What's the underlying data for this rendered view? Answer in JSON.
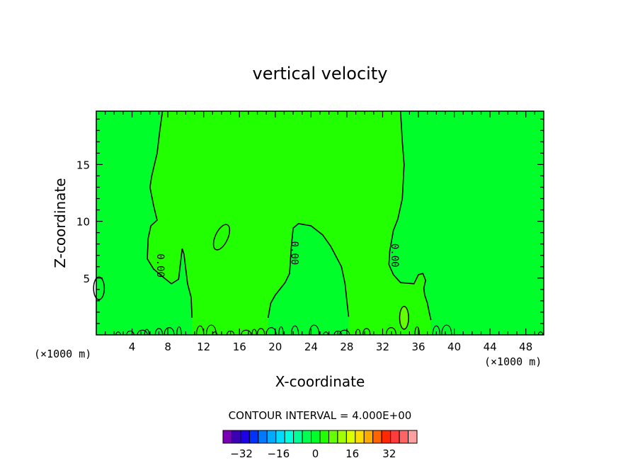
{
  "chart_data": {
    "type": "contour",
    "title": "vertical velocity",
    "xlabel": "X-coordinate",
    "ylabel": "Z-coordinate",
    "x_unit": "(×1000 m)",
    "xlim": [
      0,
      50
    ],
    "ylim": [
      0,
      19.7
    ],
    "x_ticks": [
      4,
      8,
      12,
      16,
      20,
      24,
      28,
      32,
      36,
      40,
      44,
      48
    ],
    "y_ticks": [
      5,
      10,
      15
    ],
    "contour_interval_label": "CONTOUR INTERVAL = 4.000E+00",
    "contour_labels": [
      {
        "text": "0.00",
        "x": 6.8,
        "z": 6.1
      },
      {
        "text": "0.00",
        "x": 21.8,
        "z": 7.2
      },
      {
        "text": "0.00",
        "x": 33.0,
        "z": 7.0
      }
    ],
    "background_color": "#00ff2a",
    "positive_region_color": "#22ff00",
    "zero_contour": [
      {
        "name": "left-updraft-boundary",
        "points": [
          [
            7.4,
            19.7
          ],
          [
            7.1,
            18
          ],
          [
            6.8,
            16
          ],
          [
            6.2,
            14
          ],
          [
            6.0,
            13
          ],
          [
            6.4,
            11.4
          ],
          [
            6.8,
            10.1
          ],
          [
            6.1,
            9.6
          ],
          [
            5.8,
            8.5
          ],
          [
            5.7,
            6.7
          ],
          [
            6.4,
            5.8
          ],
          [
            7.6,
            5.0
          ],
          [
            8.4,
            4.5
          ],
          [
            9.2,
            4.9
          ],
          [
            9.6,
            7.6
          ],
          [
            9.8,
            7.1
          ],
          [
            10.2,
            4.5
          ],
          [
            10.6,
            3.3
          ],
          [
            10.7,
            1.5
          ]
        ]
      },
      {
        "name": "right-updraft-boundary",
        "points": [
          [
            34.0,
            19.7
          ],
          [
            34.2,
            17
          ],
          [
            34.4,
            15
          ],
          [
            34.2,
            12
          ],
          [
            33.7,
            10.2
          ],
          [
            33.2,
            9.2
          ],
          [
            32.8,
            7.4
          ],
          [
            32.7,
            6.2
          ],
          [
            33.2,
            5.3
          ],
          [
            34.0,
            4.6
          ],
          [
            35.5,
            4.5
          ],
          [
            36.0,
            5.3
          ],
          [
            36.5,
            5.4
          ],
          [
            36.8,
            4.8
          ],
          [
            36.6,
            4.1
          ],
          [
            36.7,
            3.5
          ],
          [
            37.0,
            2.8
          ],
          [
            37.2,
            2.0
          ],
          [
            37.4,
            1.3
          ]
        ]
      },
      {
        "name": "dome",
        "points": [
          [
            19.2,
            1.5
          ],
          [
            19.5,
            2.8
          ],
          [
            20.0,
            3.5
          ],
          [
            21.1,
            4.6
          ],
          [
            21.6,
            5.4
          ],
          [
            21.8,
            7.8
          ],
          [
            22.0,
            9.4
          ],
          [
            22.6,
            9.8
          ],
          [
            24.0,
            9.6
          ],
          [
            25.3,
            8.8
          ],
          [
            26.2,
            7.8
          ],
          [
            27.4,
            6.0
          ],
          [
            27.8,
            4.5
          ],
          [
            28.0,
            3.0
          ],
          [
            28.2,
            1.6
          ]
        ]
      }
    ],
    "closed_contours": [
      {
        "name": "cell-x14",
        "cx": 14.0,
        "cz": 8.6,
        "rx": 0.7,
        "rz": 1.2
      },
      {
        "name": "cell-x34",
        "cx": 34.4,
        "cz": 1.5,
        "rx": 0.5,
        "rz": 1.0
      },
      {
        "name": "cell-x1",
        "cx": 0.3,
        "cz": 4.1,
        "rx": 0.6,
        "rz": 1.0
      }
    ],
    "colorbar": {
      "colors": [
        "#7b00b4",
        "#3c00b4",
        "#1e00e6",
        "#0032ff",
        "#0078ff",
        "#00aaff",
        "#00dcff",
        "#00ffdc",
        "#00ff96",
        "#00ff50",
        "#00ff2a",
        "#22ff00",
        "#64ff00",
        "#a0ff00",
        "#dcff00",
        "#ffdc00",
        "#ffaa00",
        "#ff6400",
        "#ff2800",
        "#ff3c3c",
        "#ff6464",
        "#ffa0a0"
      ],
      "tick_labels": [
        "−32",
        "−16",
        "0",
        "16",
        "32"
      ],
      "tick_values": [
        -32,
        -16,
        0,
        16,
        32
      ],
      "range": [
        -40,
        44
      ]
    }
  }
}
